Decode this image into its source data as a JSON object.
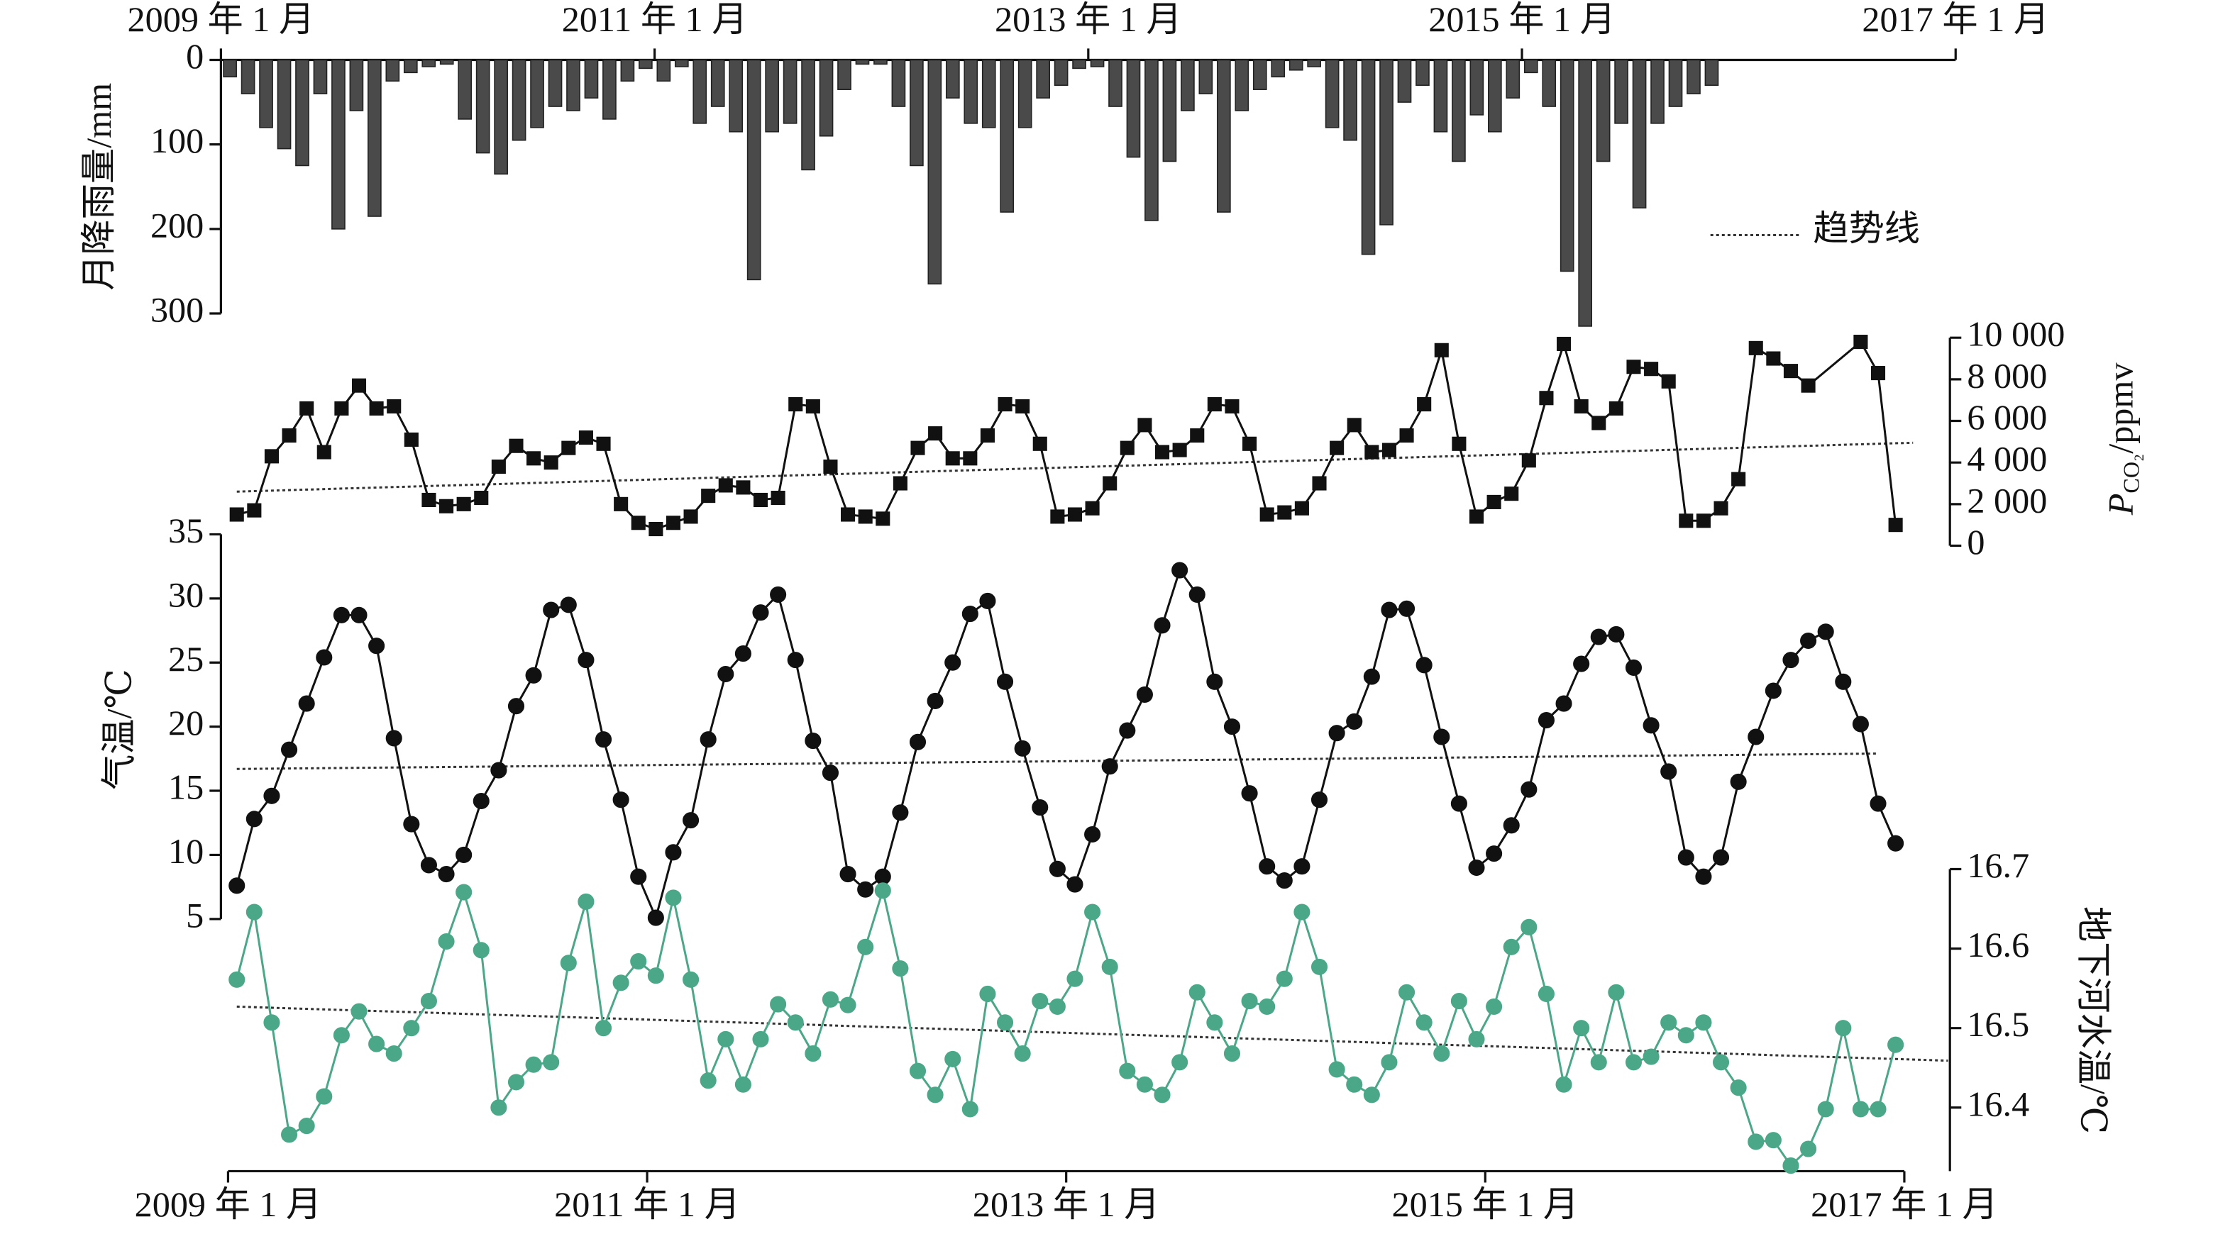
{
  "chart_data": [
    {
      "type": "bar",
      "color": "#4a4a4a",
      "x_axis": "top",
      "y_axis": "left",
      "ylabel": "月降雨量/mm",
      "legend_label": "趋势线",
      "xlim": [
        "2009-01",
        "2017-01"
      ],
      "xticks": [
        {
          "value": "2009-01",
          "label": "2009 年 1 月"
        },
        {
          "value": "2011-01",
          "label": "2011 年 1 月"
        },
        {
          "value": "2013-01",
          "label": "2013 年 1 月"
        },
        {
          "value": "2015-01",
          "label": "2015 年 1 月"
        },
        {
          "value": "2017-01",
          "label": "2017 年 1 月"
        }
      ],
      "ylim": [
        300,
        0
      ],
      "yticks": [
        0,
        100,
        200,
        300
      ],
      "x": [
        "2009-01",
        "2009-02",
        "2009-03",
        "2009-04",
        "2009-05",
        "2009-06",
        "2009-07",
        "2009-08",
        "2009-09",
        "2009-10",
        "2009-11",
        "2009-12",
        "2010-01",
        "2010-02",
        "2010-03",
        "2010-04",
        "2010-05",
        "2010-06",
        "2010-07",
        "2010-08",
        "2010-09",
        "2010-10",
        "2010-11",
        "2010-12",
        "2011-01",
        "2011-02",
        "2011-03",
        "2011-04",
        "2011-05",
        "2011-06",
        "2011-07",
        "2011-08",
        "2011-09",
        "2011-10",
        "2011-11",
        "2011-12",
        "2012-01",
        "2012-02",
        "2012-03",
        "2012-04",
        "2012-05",
        "2012-06",
        "2012-07",
        "2012-08",
        "2012-09",
        "2012-10",
        "2012-11",
        "2012-12",
        "2013-01",
        "2013-02",
        "2013-03",
        "2013-04",
        "2013-05",
        "2013-06",
        "2013-07",
        "2013-08",
        "2013-09",
        "2013-10",
        "2013-11",
        "2013-12",
        "2014-01",
        "2014-02",
        "2014-03",
        "2014-04",
        "2014-05",
        "2014-06",
        "2014-07",
        "2014-08",
        "2014-09",
        "2014-10",
        "2014-11",
        "2014-12",
        "2015-01",
        "2015-02",
        "2015-03",
        "2015-04",
        "2015-05",
        "2015-06",
        "2015-07",
        "2015-08",
        "2015-09",
        "2015-10",
        "2015-11"
      ],
      "values": [
        20,
        40,
        80,
        105,
        125,
        40,
        200,
        60,
        185,
        25,
        15,
        8,
        5,
        70,
        110,
        135,
        95,
        80,
        55,
        60,
        45,
        70,
        25,
        10,
        25,
        8,
        75,
        55,
        85,
        260,
        85,
        75,
        130,
        90,
        35,
        5,
        5,
        55,
        125,
        265,
        45,
        75,
        80,
        180,
        80,
        45,
        30,
        10,
        8,
        55,
        115,
        190,
        120,
        60,
        40,
        180,
        60,
        35,
        20,
        12,
        8,
        80,
        95,
        230,
        195,
        50,
        30,
        85,
        120,
        65,
        85,
        45,
        15,
        55,
        250,
        315,
        120,
        75,
        175,
        75,
        55,
        40,
        30
      ]
    },
    {
      "type": "line",
      "marker": "square",
      "color": "#111111",
      "y_axis": "right",
      "ylabel": {
        "symbol": "P",
        "subscript": "CO₂",
        "unit": "/ppmv"
      },
      "xlim": [
        "2009-01",
        "2017-01"
      ],
      "ylim": [
        0,
        10000
      ],
      "yticks": [
        0,
        {
          "value": 2000,
          "label": "2 000"
        },
        {
          "value": 4000,
          "label": "4 000"
        },
        {
          "value": 6000,
          "label": "6 000"
        },
        {
          "value": 8000,
          "label": "8 000"
        },
        {
          "value": 10000,
          "label": "10 000"
        }
      ],
      "trend_x": [
        "2009-01",
        "2017-01"
      ],
      "trend_values": [
        2600,
        4950
      ],
      "x": [
        "2009-01",
        "2009-02",
        "2009-03",
        "2009-04",
        "2009-05",
        "2009-06",
        "2009-07",
        "2009-08",
        "2009-09",
        "2009-10",
        "2009-11",
        "2009-12",
        "2010-01",
        "2010-02",
        "2010-03",
        "2010-04",
        "2010-05",
        "2010-06",
        "2010-07",
        "2010-08",
        "2010-09",
        "2010-10",
        "2010-11",
        "2010-12",
        "2011-01",
        "2011-02",
        "2011-03",
        "2011-04",
        "2011-05",
        "2011-06",
        "2011-07",
        "2011-08",
        "2011-09",
        "2011-10",
        "2011-11",
        "2011-12",
        "2012-01",
        "2012-02",
        "2012-03",
        "2012-04",
        "2012-05",
        "2012-06",
        "2012-07",
        "2012-08",
        "2012-09",
        "2012-10",
        "2012-11",
        "2012-12",
        "2013-01",
        "2013-02",
        "2013-03",
        "2013-04",
        "2013-05",
        "2013-06",
        "2013-07",
        "2013-08",
        "2013-09",
        "2013-10",
        "2013-11",
        "2013-12",
        "2014-01",
        "2014-02",
        "2014-03",
        "2014-04",
        "2014-05",
        "2014-06",
        "2014-07",
        "2014-08",
        "2014-09",
        "2014-10",
        "2014-11",
        "2014-12",
        "2015-01",
        "2015-02",
        "2015-03",
        "2015-04",
        "2015-05",
        "2015-06",
        "2015-07",
        "2015-08",
        "2015-09",
        "2015-10",
        "2015-11",
        "2015-12",
        "2016-01",
        "2016-02",
        "2016-03",
        "2016-04",
        "2016-05",
        "2016-06",
        "2016-07",
        "2016-10",
        "2016-11",
        "2016-12"
      ],
      "values": [
        1500,
        1700,
        4300,
        5300,
        6600,
        4500,
        6600,
        7700,
        6600,
        6700,
        5100,
        2200,
        1900,
        2000,
        2300,
        3800,
        4800,
        4200,
        4000,
        4700,
        5200,
        4900,
        2000,
        1100,
        800,
        1100,
        1400,
        2400,
        2900,
        2800,
        2200,
        2300,
        6800,
        6700,
        3800,
        1500,
        1400,
        1300,
        3000,
        4700,
        5400,
        4200,
        4200,
        5300,
        6800,
        6700,
        4900,
        1400,
        1500,
        1800,
        3000,
        4700,
        5800,
        4500,
        4600,
        5300,
        6800,
        6700,
        4900,
        1500,
        1600,
        1800,
        3000,
        4700,
        5800,
        4500,
        4600,
        5300,
        6800,
        9400,
        4900,
        1400,
        2100,
        2500,
        4100,
        7100,
        9700,
        6700,
        5900,
        6600,
        8600,
        8500,
        7900,
        1200,
        1200,
        1800,
        3200,
        9500,
        9000,
        8400,
        7700,
        9800,
        8300,
        1000
      ]
    },
    {
      "type": "line",
      "marker": "circle",
      "color": "#111111",
      "y_axis": "left",
      "ylabel": "气温/℃",
      "xlim": [
        "2009-01",
        "2017-01"
      ],
      "ylim": [
        5,
        35
      ],
      "yticks": [
        5,
        10,
        15,
        20,
        25,
        30,
        35
      ],
      "trend_x": [
        "2009-01",
        "2016-11"
      ],
      "trend_values": [
        16.7,
        17.9
      ],
      "x": [
        "2009-01",
        "2009-02",
        "2009-03",
        "2009-04",
        "2009-05",
        "2009-06",
        "2009-07",
        "2009-08",
        "2009-09",
        "2009-10",
        "2009-11",
        "2009-12",
        "2010-01",
        "2010-02",
        "2010-03",
        "2010-04",
        "2010-05",
        "2010-06",
        "2010-07",
        "2010-08",
        "2010-09",
        "2010-10",
        "2010-11",
        "2010-12",
        "2011-01",
        "2011-02",
        "2011-03",
        "2011-04",
        "2011-05",
        "2011-06",
        "2011-07",
        "2011-08",
        "2011-09",
        "2011-10",
        "2011-11",
        "2011-12",
        "2012-01",
        "2012-02",
        "2012-03",
        "2012-04",
        "2012-05",
        "2012-06",
        "2012-07",
        "2012-08",
        "2012-09",
        "2012-10",
        "2012-11",
        "2012-12",
        "2013-01",
        "2013-02",
        "2013-03",
        "2013-04",
        "2013-05",
        "2013-06",
        "2013-07",
        "2013-08",
        "2013-09",
        "2013-10",
        "2013-11",
        "2013-12",
        "2014-01",
        "2014-02",
        "2014-03",
        "2014-04",
        "2014-05",
        "2014-06",
        "2014-07",
        "2014-08",
        "2014-09",
        "2014-10",
        "2014-11",
        "2014-12",
        "2015-01",
        "2015-02",
        "2015-03",
        "2015-04",
        "2015-05",
        "2015-06",
        "2015-07",
        "2015-08",
        "2015-09",
        "2015-10",
        "2015-11",
        "2015-12",
        "2016-01",
        "2016-02",
        "2016-03",
        "2016-04",
        "2016-05",
        "2016-06",
        "2016-07",
        "2016-08",
        "2016-09",
        "2016-10",
        "2016-11",
        "2016-12"
      ],
      "values": [
        7.6,
        12.8,
        14.6,
        18.2,
        21.8,
        25.4,
        28.7,
        28.7,
        26.3,
        19.1,
        12.4,
        9.2,
        8.5,
        10,
        14.2,
        16.6,
        21.6,
        24,
        29.1,
        29.5,
        25.2,
        19,
        14.3,
        8.3,
        5.1,
        10.2,
        12.7,
        19,
        24.1,
        25.7,
        28.9,
        30.3,
        25.2,
        18.9,
        16.4,
        8.5,
        7.3,
        8.3,
        13.3,
        18.8,
        22,
        25,
        28.8,
        29.8,
        23.5,
        18.3,
        13.7,
        8.9,
        7.7,
        11.6,
        16.9,
        19.7,
        22.5,
        27.9,
        32.2,
        30.3,
        23.5,
        20,
        14.8,
        9.1,
        8,
        9.1,
        14.3,
        19.5,
        20.4,
        23.9,
        29.1,
        29.2,
        24.8,
        19.2,
        14,
        9,
        10.1,
        12.3,
        15.1,
        20.5,
        21.8,
        24.9,
        27,
        27.2,
        24.6,
        20.1,
        16.5,
        9.8,
        8.3,
        9.8,
        15.7,
        19.2,
        22.8,
        25.2,
        26.7,
        27.4,
        23.5,
        20.2,
        14,
        10.9
      ]
    },
    {
      "type": "line",
      "marker": "circle",
      "color": "#4aa889",
      "y_axis": "right",
      "x_axis": "bottom",
      "ylabel": "地下河水温/℃",
      "xlim": [
        "2009-01",
        "2017-01"
      ],
      "xticks": [
        {
          "value": "2009-01",
          "label": "2009 年 1 月"
        },
        {
          "value": "2011-01",
          "label": "2011 年 1 月"
        },
        {
          "value": "2013-01",
          "label": "2013 年 1 月"
        },
        {
          "value": "2015-01",
          "label": "2015 年 1 月"
        },
        {
          "value": "2017-01",
          "label": "2017 年 1 月"
        }
      ],
      "ylim": [
        16.32,
        16.7
      ],
      "yticks": [
        16.4,
        16.5,
        16.6,
        16.7
      ],
      "trend_x": [
        "2009-01",
        "2017-03"
      ],
      "trend_values": [
        16.527,
        16.459
      ],
      "x": [
        "2009-01",
        "2009-02",
        "2009-03",
        "2009-04",
        "2009-05",
        "2009-06",
        "2009-07",
        "2009-08",
        "2009-09",
        "2009-10",
        "2009-11",
        "2009-12",
        "2010-01",
        "2010-02",
        "2010-03",
        "2010-04",
        "2010-05",
        "2010-06",
        "2010-07",
        "2010-08",
        "2010-09",
        "2010-10",
        "2010-11",
        "2010-12",
        "2011-01",
        "2011-02",
        "2011-03",
        "2011-04",
        "2011-05",
        "2011-06",
        "2011-07",
        "2011-08",
        "2011-09",
        "2011-10",
        "2011-11",
        "2011-12",
        "2012-01",
        "2012-02",
        "2012-03",
        "2012-04",
        "2012-05",
        "2012-06",
        "2012-07",
        "2012-08",
        "2012-09",
        "2012-10",
        "2012-11",
        "2012-12",
        "2013-01",
        "2013-02",
        "2013-03",
        "2013-04",
        "2013-05",
        "2013-06",
        "2013-07",
        "2013-08",
        "2013-09",
        "2013-10",
        "2013-11",
        "2013-12",
        "2014-01",
        "2014-02",
        "2014-03",
        "2014-04",
        "2014-05",
        "2014-06",
        "2014-07",
        "2014-08",
        "2014-09",
        "2014-10",
        "2014-11",
        "2014-12",
        "2015-01",
        "2015-02",
        "2015-03",
        "2015-04",
        "2015-05",
        "2015-06",
        "2015-07",
        "2015-08",
        "2015-09",
        "2015-10",
        "2015-11",
        "2015-12",
        "2016-01",
        "2016-02",
        "2016-03",
        "2016-04",
        "2016-05",
        "2016-06",
        "2016-07",
        "2016-08",
        "2016-09",
        "2016-10",
        "2016-11",
        "2016-12"
      ],
      "values": [
        16.561,
        16.646,
        16.507,
        16.366,
        16.377,
        16.414,
        16.491,
        16.521,
        16.48,
        16.468,
        16.5,
        16.534,
        16.609,
        16.671,
        16.598,
        16.4,
        16.432,
        16.454,
        16.457,
        16.582,
        16.659,
        16.5,
        16.557,
        16.584,
        16.566,
        16.664,
        16.561,
        16.434,
        16.486,
        16.429,
        16.486,
        16.53,
        16.507,
        16.468,
        16.536,
        16.529,
        16.602,
        16.673,
        16.575,
        16.446,
        16.416,
        16.461,
        16.398,
        16.543,
        16.507,
        16.468,
        16.534,
        16.527,
        16.562,
        16.646,
        16.577,
        16.446,
        16.429,
        16.416,
        16.457,
        16.545,
        16.507,
        16.468,
        16.534,
        16.527,
        16.562,
        16.646,
        16.577,
        16.448,
        16.429,
        16.416,
        16.457,
        16.545,
        16.507,
        16.468,
        16.534,
        16.486,
        16.527,
        16.602,
        16.627,
        16.543,
        16.429,
        16.5,
        16.457,
        16.545,
        16.457,
        16.464,
        16.507,
        16.491,
        16.507,
        16.457,
        16.425,
        16.357,
        16.359,
        16.327,
        16.348,
        16.398,
        16.5,
        16.398,
        16.398,
        16.479
      ]
    }
  ]
}
